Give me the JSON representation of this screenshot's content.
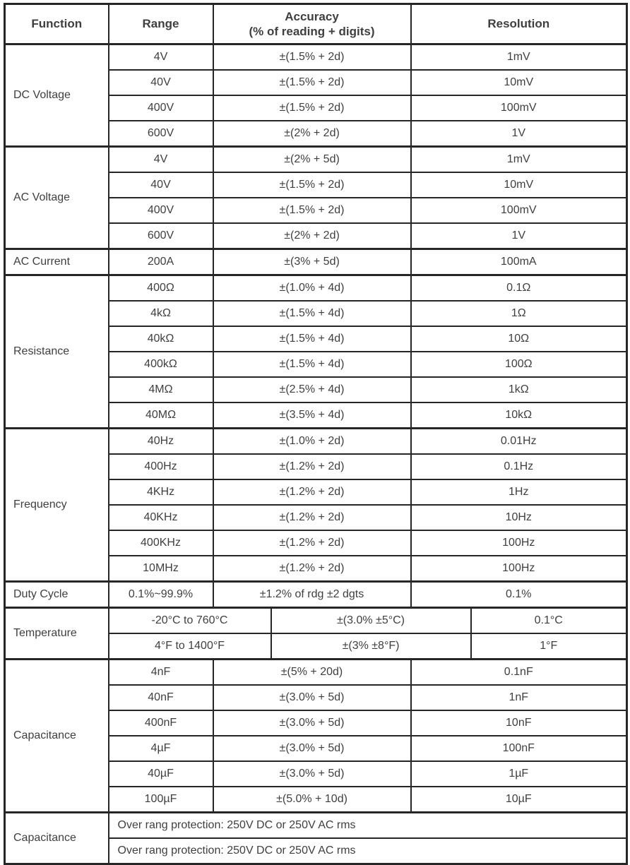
{
  "colors": {
    "border": "#262626",
    "text": "#3f3f3f",
    "background": "#ffffff"
  },
  "header": {
    "function": "Function",
    "range": "Range",
    "accuracy_line1": "Accuracy",
    "accuracy_line2": "(% of reading + digits)",
    "resolution": "Resolution"
  },
  "sections": [
    {
      "function": "DC Voltage",
      "layout": "normal",
      "rows": [
        {
          "range": "4V",
          "accuracy": "±(1.5% + 2d)",
          "resolution": "1mV"
        },
        {
          "range": "40V",
          "accuracy": "±(1.5% + 2d)",
          "resolution": "10mV"
        },
        {
          "range": "400V",
          "accuracy": "±(1.5% + 2d)",
          "resolution": "100mV"
        },
        {
          "range": "600V",
          "accuracy": "±(2% + 2d)",
          "resolution": "1V"
        }
      ]
    },
    {
      "function": "AC Voltage",
      "layout": "normal",
      "rows": [
        {
          "range": "4V",
          "accuracy": "±(2% + 5d)",
          "resolution": "1mV"
        },
        {
          "range": "40V",
          "accuracy": "±(1.5% + 2d)",
          "resolution": "10mV"
        },
        {
          "range": "400V",
          "accuracy": "±(1.5% + 2d)",
          "resolution": "100mV"
        },
        {
          "range": "600V",
          "accuracy": "±(2% + 2d)",
          "resolution": "1V"
        }
      ]
    },
    {
      "function": "AC Current",
      "layout": "normal",
      "rows": [
        {
          "range": "200A",
          "accuracy": "±(3% + 5d)",
          "resolution": "100mA"
        }
      ]
    },
    {
      "function": "Resistance",
      "layout": "normal",
      "rows": [
        {
          "range": "400Ω",
          "accuracy": "±(1.0% + 4d)",
          "resolution": "0.1Ω"
        },
        {
          "range": "4kΩ",
          "accuracy": "±(1.5% + 4d)",
          "resolution": "1Ω"
        },
        {
          "range": "40kΩ",
          "accuracy": "±(1.5% + 4d)",
          "resolution": "10Ω"
        },
        {
          "range": "400kΩ",
          "accuracy": "±(1.5% + 4d)",
          "resolution": "100Ω"
        },
        {
          "range": "4MΩ",
          "accuracy": "±(2.5% + 4d)",
          "resolution": "1kΩ"
        },
        {
          "range": "40MΩ",
          "accuracy": "±(3.5% + 4d)",
          "resolution": "10kΩ"
        }
      ]
    },
    {
      "function": "Frequency",
      "layout": "normal",
      "rows": [
        {
          "range": "40Hz",
          "accuracy": "±(1.0% + 2d)",
          "resolution": "0.01Hz"
        },
        {
          "range": "400Hz",
          "accuracy": "±(1.2% + 2d)",
          "resolution": "0.1Hz"
        },
        {
          "range": "4KHz",
          "accuracy": "±(1.2% + 2d)",
          "resolution": "1Hz"
        },
        {
          "range": "40KHz",
          "accuracy": "±(1.2% + 2d)",
          "resolution": "10Hz"
        },
        {
          "range": "400KHz",
          "accuracy": "±(1.2% + 2d)",
          "resolution": "100Hz"
        },
        {
          "range": "10MHz",
          "accuracy": "±(1.2% + 2d)",
          "resolution": "100Hz"
        }
      ]
    },
    {
      "function": "Duty Cycle",
      "layout": "normal",
      "rows": [
        {
          "range": "0.1%~99.9%",
          "accuracy": "±1.2% of rdg ±2 dgts",
          "resolution": "0.1%"
        }
      ]
    },
    {
      "function": "Temperature",
      "layout": "wide",
      "rows": [
        {
          "range": "-20°C to 760°C",
          "accuracy": "±(3.0% ±5°C)",
          "resolution": "0.1°C"
        },
        {
          "range": "4°F to 1400°F",
          "accuracy": "±(3% ±8°F)",
          "resolution": "1°F"
        }
      ]
    },
    {
      "function": "Capacitance",
      "layout": "normal",
      "rows": [
        {
          "range": "4nF",
          "accuracy": "±(5% + 20d)",
          "resolution": "0.1nF"
        },
        {
          "range": "40nF",
          "accuracy": "±(3.0% + 5d)",
          "resolution": "1nF"
        },
        {
          "range": "400nF",
          "accuracy": "±(3.0% + 5d)",
          "resolution": "10nF"
        },
        {
          "range": "4µF",
          "accuracy": "±(3.0% + 5d)",
          "resolution": "100nF"
        },
        {
          "range": "40µF",
          "accuracy": "±(3.0% + 5d)",
          "resolution": "1µF"
        },
        {
          "range": "100µF",
          "accuracy": "±(5.0% + 10d)",
          "resolution": "10µF"
        }
      ]
    },
    {
      "function": "Capacitance",
      "layout": "full",
      "rows": [
        {
          "text": "Over rang protection: 250V DC or 250V AC rms"
        },
        {
          "text": "Over rang protection: 250V DC or 250V AC rms"
        }
      ]
    }
  ]
}
